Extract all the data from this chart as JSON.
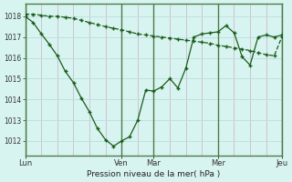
{
  "title": "",
  "xlabel": "Pression niveau de la mer( hPa )",
  "ylabel": "",
  "bg_color": "#d8f4f0",
  "grid_color_v": "#ccbbcc",
  "grid_color_h": "#bbdddd",
  "line_color": "#1a5c1a",
  "ylim": [
    1011.3,
    1018.6
  ],
  "yticks": [
    1012,
    1013,
    1014,
    1015,
    1016,
    1017,
    1018
  ],
  "day_labels": [
    "Lun",
    "Ven",
    "Mar",
    "Mer",
    "Jeu"
  ],
  "day_positions": [
    0.0,
    0.375,
    0.5,
    0.75,
    1.0
  ],
  "series1_x": [
    0.0,
    0.031,
    0.063,
    0.094,
    0.125,
    0.156,
    0.188,
    0.219,
    0.25,
    0.281,
    0.313,
    0.344,
    0.375,
    0.406,
    0.438,
    0.469,
    0.5,
    0.531,
    0.563,
    0.594,
    0.625,
    0.656,
    0.688,
    0.719,
    0.75,
    0.781,
    0.813,
    0.844,
    0.875,
    0.906,
    0.938,
    0.969,
    1.0
  ],
  "series1_y": [
    1018.0,
    1017.7,
    1017.15,
    1016.65,
    1016.1,
    1015.35,
    1014.8,
    1014.05,
    1013.4,
    1012.6,
    1012.05,
    1011.75,
    1012.0,
    1012.2,
    1013.0,
    1014.45,
    1014.4,
    1014.6,
    1015.0,
    1014.55,
    1015.5,
    1017.0,
    1017.15,
    1017.2,
    1017.25,
    1017.55,
    1017.2,
    1016.05,
    1015.65,
    1017.0,
    1017.1,
    1017.0,
    1017.1
  ],
  "series2_x": [
    0.0,
    0.031,
    0.063,
    0.094,
    0.125,
    0.156,
    0.188,
    0.219,
    0.25,
    0.281,
    0.313,
    0.344,
    0.375,
    0.406,
    0.438,
    0.469,
    0.5,
    0.531,
    0.563,
    0.594,
    0.625,
    0.656,
    0.688,
    0.719,
    0.75,
    0.781,
    0.813,
    0.844,
    0.875,
    0.906,
    0.938,
    0.969,
    1.0
  ],
  "series2_y": [
    1018.1,
    1018.1,
    1018.05,
    1018.0,
    1018.0,
    1017.95,
    1017.9,
    1017.8,
    1017.7,
    1017.6,
    1017.5,
    1017.42,
    1017.35,
    1017.25,
    1017.15,
    1017.1,
    1017.05,
    1017.0,
    1016.95,
    1016.9,
    1016.85,
    1016.8,
    1016.75,
    1016.7,
    1016.6,
    1016.55,
    1016.48,
    1016.42,
    1016.35,
    1016.25,
    1016.15,
    1016.1,
    1017.05
  ]
}
